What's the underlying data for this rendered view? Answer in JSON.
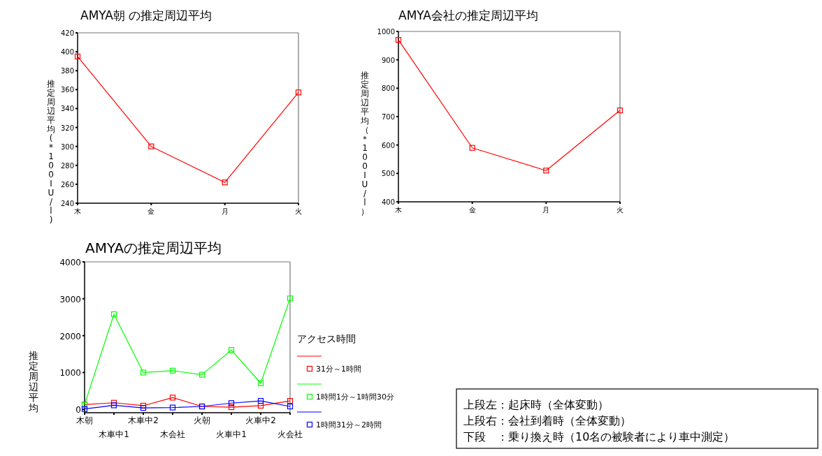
{
  "chart_data": [
    {
      "type": "line",
      "title": "AMYA朝 の推定周辺平均",
      "ylabel": "推定周辺平均(*100IU/l)",
      "categories": [
        "木",
        "金",
        "月",
        "火"
      ],
      "series": [
        {
          "color": "#ff0000",
          "values": [
            395,
            300,
            262,
            357
          ]
        }
      ],
      "ylim": [
        240,
        420
      ],
      "yticks": [
        240,
        260,
        280,
        300,
        320,
        340,
        360,
        380,
        400,
        420
      ],
      "marker": "square",
      "line_style": "solid",
      "grid": false
    },
    {
      "type": "line",
      "title": "AMYA会社の推定周辺平均",
      "ylabel": "推定周辺平均（＊100IU/l）",
      "categories": [
        "木",
        "金",
        "月",
        "火"
      ],
      "series": [
        {
          "color": "#ff0000",
          "values": [
            970,
            590,
            510,
            722
          ]
        }
      ],
      "ylim": [
        400,
        1000
      ],
      "yticks": [
        400,
        500,
        600,
        700,
        800,
        900,
        1000
      ],
      "marker": "square",
      "line_style": "solid",
      "grid": false
    },
    {
      "type": "line",
      "title": "AMYAの推定周辺平均",
      "ylabel": "推定周辺平均",
      "legend_title": "アクセス時間",
      "categories": [
        "木朝",
        "木車中1",
        "木車中2",
        "木会社",
        "火朝",
        "火車中1",
        "火車中2",
        "火会社"
      ],
      "series": [
        {
          "name": "31分～1時間",
          "color": "#ff0000",
          "values": [
            130,
            180,
            100,
            320,
            80,
            60,
            100,
            230
          ]
        },
        {
          "name": "1時間1分～1時間30分",
          "color": "#00ff00",
          "values": [
            130,
            2580,
            1000,
            1050,
            940,
            1610,
            710,
            3010
          ]
        },
        {
          "name": "1時間31分～2時間",
          "color": "#0000ff",
          "values": [
            10,
            110,
            40,
            50,
            80,
            170,
            230,
            80
          ]
        }
      ],
      "ylim": [
        -90,
        4000
      ],
      "yticks": [
        0,
        1000,
        2000,
        3000,
        4000
      ],
      "marker": "square",
      "line_style": "solid",
      "grid": false,
      "legend": "right"
    },
    {
      "type": "other",
      "annotations": [
        "上段左：起床時（全体変動）",
        "上段右：会社到着時（全体変動）",
        "下段　：乗り換え時（10名の被験者により車中測定）"
      ]
    }
  ]
}
